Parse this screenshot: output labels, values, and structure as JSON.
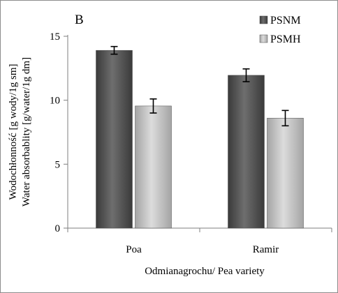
{
  "chart_data": {
    "type": "bar",
    "panel_label": "B",
    "categories": [
      "Poa",
      "Ramir"
    ],
    "series": [
      {
        "name": "PSNM",
        "values": [
          13.9,
          11.95
        ],
        "errors": [
          0.3,
          0.5
        ],
        "color_dark": "#3a3a3a",
        "color_light": "#6e6e6e"
      },
      {
        "name": "PSMH",
        "values": [
          9.55,
          8.6
        ],
        "errors": [
          0.55,
          0.6
        ],
        "color_dark": "#a4a4a4",
        "color_light": "#dcdcdc"
      }
    ],
    "ylabel_line1": "Wodochłonność [g wody/1g sm]",
    "ylabel_line2": "Water absorbablity [g/water/1g dm]",
    "xlabel": "Odmianagrochu/ Pea variety",
    "ylim": [
      0,
      15
    ],
    "yticks": [
      0,
      5,
      10,
      15
    ],
    "grid": false,
    "legend_position": "top-right"
  }
}
